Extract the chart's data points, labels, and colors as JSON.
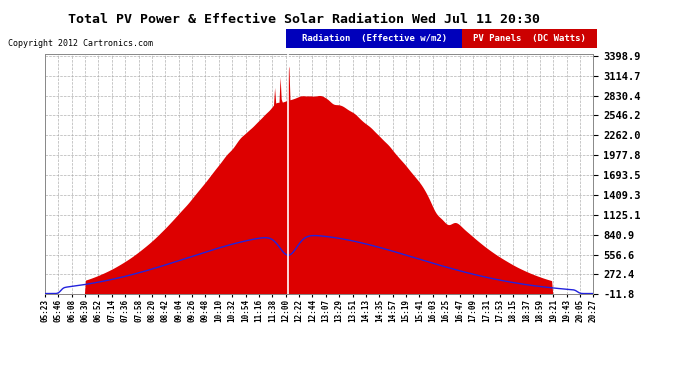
{
  "title": "Total PV Power & Effective Solar Radiation Wed Jul 11 20:30",
  "copyright": "Copyright 2012 Cartronics.com",
  "legend_rad_label": "Radiation  (Effective w/m2)",
  "legend_pv_label": "PV Panels  (DC Watts)",
  "legend_rad_bg": "#0000bb",
  "legend_pv_bg": "#cc0000",
  "yticks": [
    3398.9,
    3114.7,
    2830.4,
    2546.2,
    2262.0,
    1977.8,
    1693.5,
    1409.3,
    1125.1,
    840.9,
    556.6,
    272.4,
    -11.8
  ],
  "ymin": -11.8,
  "ymax": 3398.9,
  "bg_color": "#ffffff",
  "plot_bg": "#ffffff",
  "grid_color": "#aaaaaa",
  "x_labels": [
    "05:23",
    "05:46",
    "06:08",
    "06:30",
    "06:52",
    "07:14",
    "07:36",
    "07:58",
    "08:20",
    "08:42",
    "09:04",
    "09:26",
    "09:48",
    "10:10",
    "10:32",
    "10:54",
    "11:16",
    "11:38",
    "12:00",
    "12:22",
    "12:44",
    "13:07",
    "13:29",
    "13:51",
    "14:13",
    "14:35",
    "14:57",
    "15:19",
    "15:41",
    "16:03",
    "16:25",
    "16:47",
    "17:09",
    "17:31",
    "17:53",
    "18:15",
    "18:37",
    "18:59",
    "19:21",
    "19:43",
    "20:05",
    "20:27"
  ],
  "pv_color": "#dd0000",
  "rad_color": "#2222dd",
  "spike_color": "#ffffff"
}
